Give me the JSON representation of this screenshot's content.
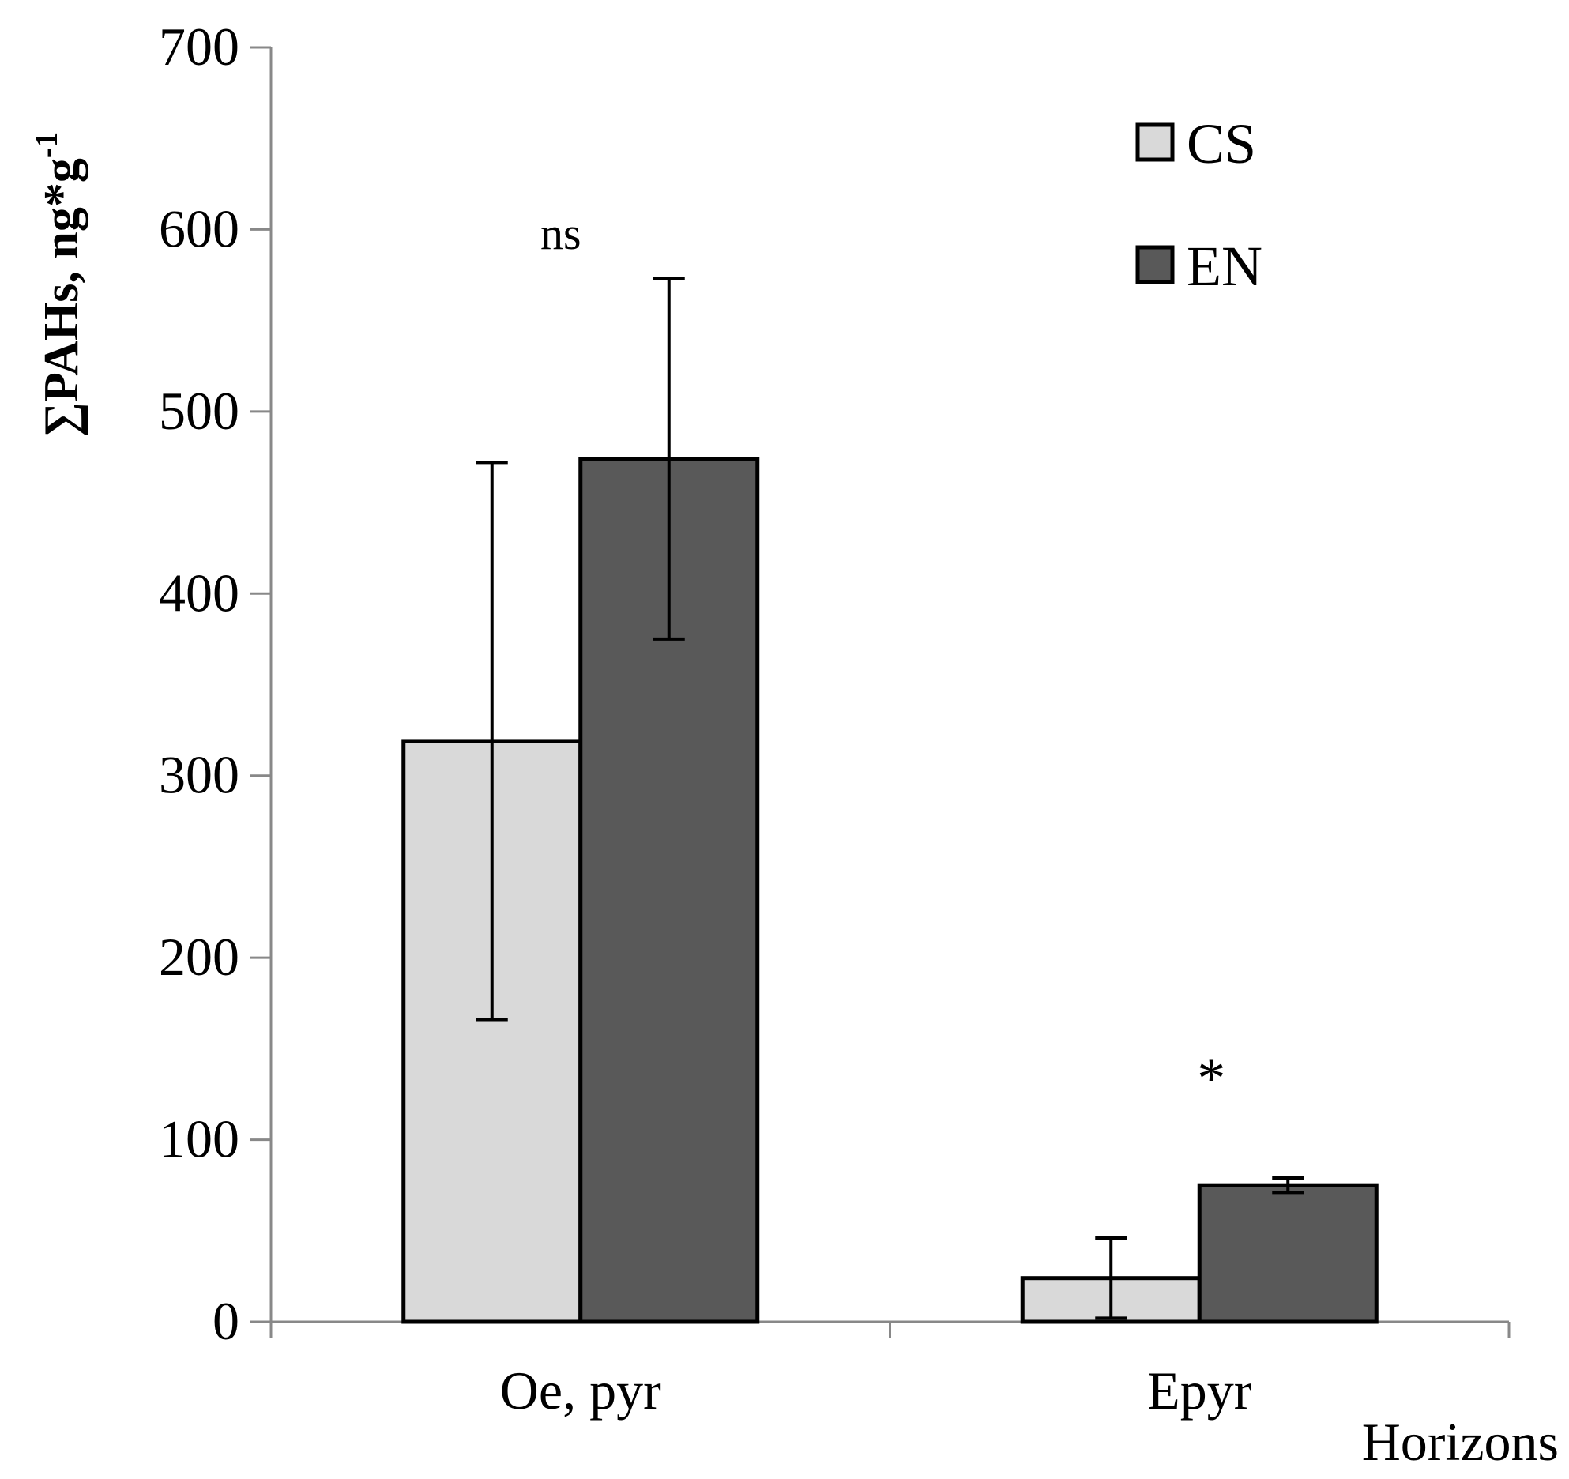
{
  "chart_data": {
    "type": "bar",
    "categories": [
      "Oe, pyr",
      "Epyr"
    ],
    "series": [
      {
        "name": "CS",
        "color": "#d9d9d9",
        "values": [
          319,
          24
        ],
        "error": [
          153,
          22
        ]
      },
      {
        "name": "EN",
        "color": "#595959",
        "values": [
          474,
          75
        ],
        "error": [
          99,
          4
        ]
      }
    ],
    "ylabel": "∑PAHs, ng*g",
    "ylabel_superscript": "-1",
    "xlabel": "Horizons",
    "ylim": [
      0,
      700
    ],
    "yticks": [
      "0",
      "100",
      "200",
      "300",
      "400",
      "500",
      "600",
      "700"
    ],
    "yticks_values": [
      0,
      100,
      200,
      300,
      400,
      500,
      600,
      700
    ],
    "annotations": [
      {
        "text": "ns",
        "category": 0,
        "y": 598
      },
      {
        "text": "*",
        "category": 1,
        "y": 145
      }
    ],
    "legend_placement": "top-right",
    "grid": false
  }
}
